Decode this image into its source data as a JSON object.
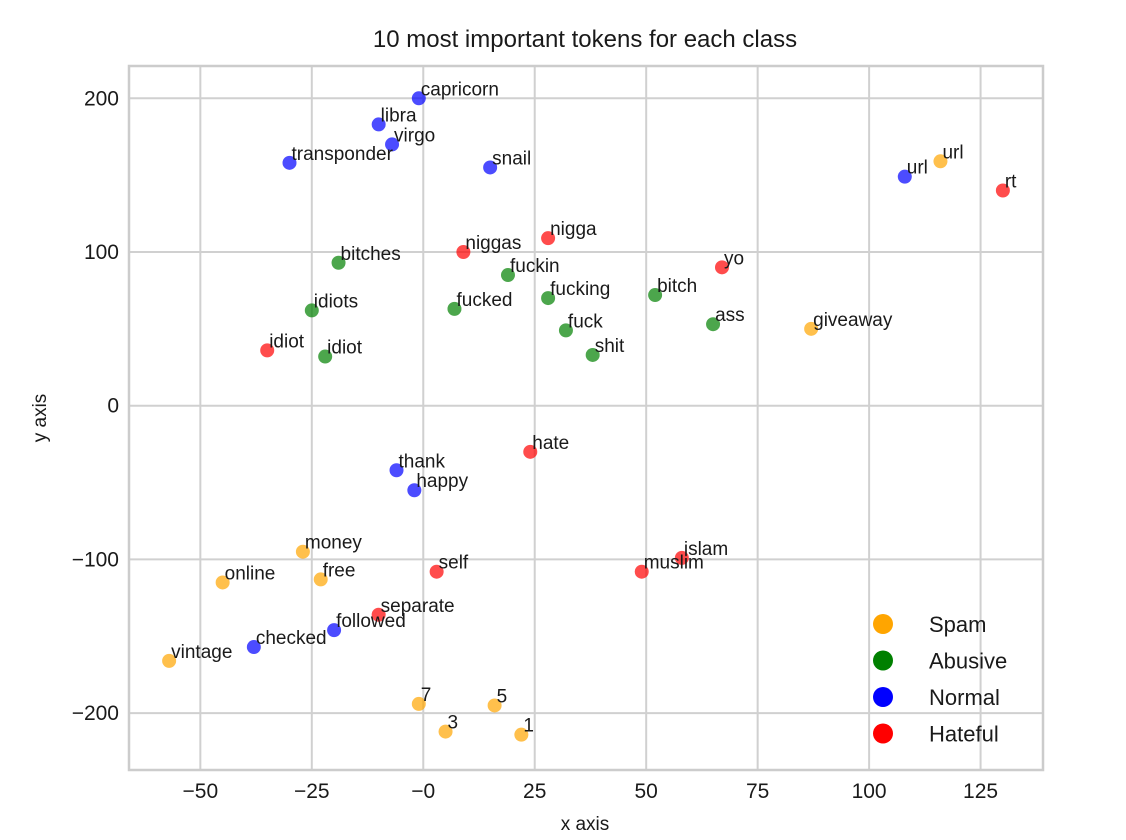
{
  "chart_data": {
    "type": "scatter",
    "title": "10 most important tokens for each class",
    "xlabel": "x axis",
    "ylabel": "y axis",
    "xlim": [
      -66,
      139
    ],
    "ylim": [
      -237,
      221
    ],
    "xticks": [
      -50,
      -25,
      0,
      25,
      50,
      75,
      100,
      125
    ],
    "yticks": [
      -200,
      -100,
      0,
      100,
      200
    ],
    "xtick_labels": [
      "−50",
      "−25",
      "−0",
      "25",
      "50",
      "75",
      "100",
      "125"
    ],
    "ytick_labels": [
      "−200",
      "−100",
      "0",
      "100",
      "200"
    ],
    "grid": true,
    "legend_position": "bottom-right",
    "colors": {
      "Spam": "#ffa500",
      "Abusive": "#008000",
      "Normal": "#0000ff",
      "Hateful": "#ff0000"
    },
    "series": [
      {
        "name": "Spam",
        "points": [
          {
            "label": "url",
            "x": 116,
            "y": 159
          },
          {
            "label": "giveaway",
            "x": 87,
            "y": 50
          },
          {
            "label": "money",
            "x": -27,
            "y": -95
          },
          {
            "label": "online",
            "x": -45,
            "y": -115
          },
          {
            "label": "free",
            "x": -23,
            "y": -113
          },
          {
            "label": "vintage",
            "x": -57,
            "y": -166
          },
          {
            "label": "7",
            "x": -1,
            "y": -194
          },
          {
            "label": "5",
            "x": 16,
            "y": -195
          },
          {
            "label": "3",
            "x": 5,
            "y": -212
          },
          {
            "label": "1",
            "x": 22,
            "y": -214
          }
        ]
      },
      {
        "name": "Abusive",
        "points": [
          {
            "label": "bitches",
            "x": -19,
            "y": 93
          },
          {
            "label": "idiots",
            "x": -25,
            "y": 62
          },
          {
            "label": "idiot",
            "x": -22,
            "y": 32
          },
          {
            "label": "fuckin",
            "x": 19,
            "y": 85
          },
          {
            "label": "fucked",
            "x": 7,
            "y": 63
          },
          {
            "label": "fucking",
            "x": 28,
            "y": 70
          },
          {
            "label": "fuck",
            "x": 32,
            "y": 49
          },
          {
            "label": "shit",
            "x": 38,
            "y": 33
          },
          {
            "label": "bitch",
            "x": 52,
            "y": 72
          },
          {
            "label": "ass",
            "x": 65,
            "y": 53
          }
        ]
      },
      {
        "name": "Normal",
        "points": [
          {
            "label": "capricorn",
            "x": -1,
            "y": 200
          },
          {
            "label": "libra",
            "x": -10,
            "y": 183
          },
          {
            "label": "virgo",
            "x": -7,
            "y": 170
          },
          {
            "label": "transponder",
            "x": -30,
            "y": 158
          },
          {
            "label": "snail",
            "x": 15,
            "y": 155
          },
          {
            "label": "url",
            "x": 108,
            "y": 149
          },
          {
            "label": "thank",
            "x": -6,
            "y": -42
          },
          {
            "label": "happy",
            "x": -2,
            "y": -55
          },
          {
            "label": "followed",
            "x": -20,
            "y": -146
          },
          {
            "label": "checked",
            "x": -38,
            "y": -157
          }
        ]
      },
      {
        "name": "Hateful",
        "points": [
          {
            "label": "rt",
            "x": 130,
            "y": 140
          },
          {
            "label": "nigga",
            "x": 28,
            "y": 109
          },
          {
            "label": "niggas",
            "x": 9,
            "y": 100
          },
          {
            "label": "yo",
            "x": 67,
            "y": 90
          },
          {
            "label": "idiot",
            "x": -35,
            "y": 36
          },
          {
            "label": "hate",
            "x": 24,
            "y": -30
          },
          {
            "label": "islam",
            "x": 58,
            "y": -99
          },
          {
            "label": "muslim",
            "x": 49,
            "y": -108
          },
          {
            "label": "self",
            "x": 3,
            "y": -108
          },
          {
            "label": "separate",
            "x": -10,
            "y": -136
          }
        ]
      }
    ]
  }
}
